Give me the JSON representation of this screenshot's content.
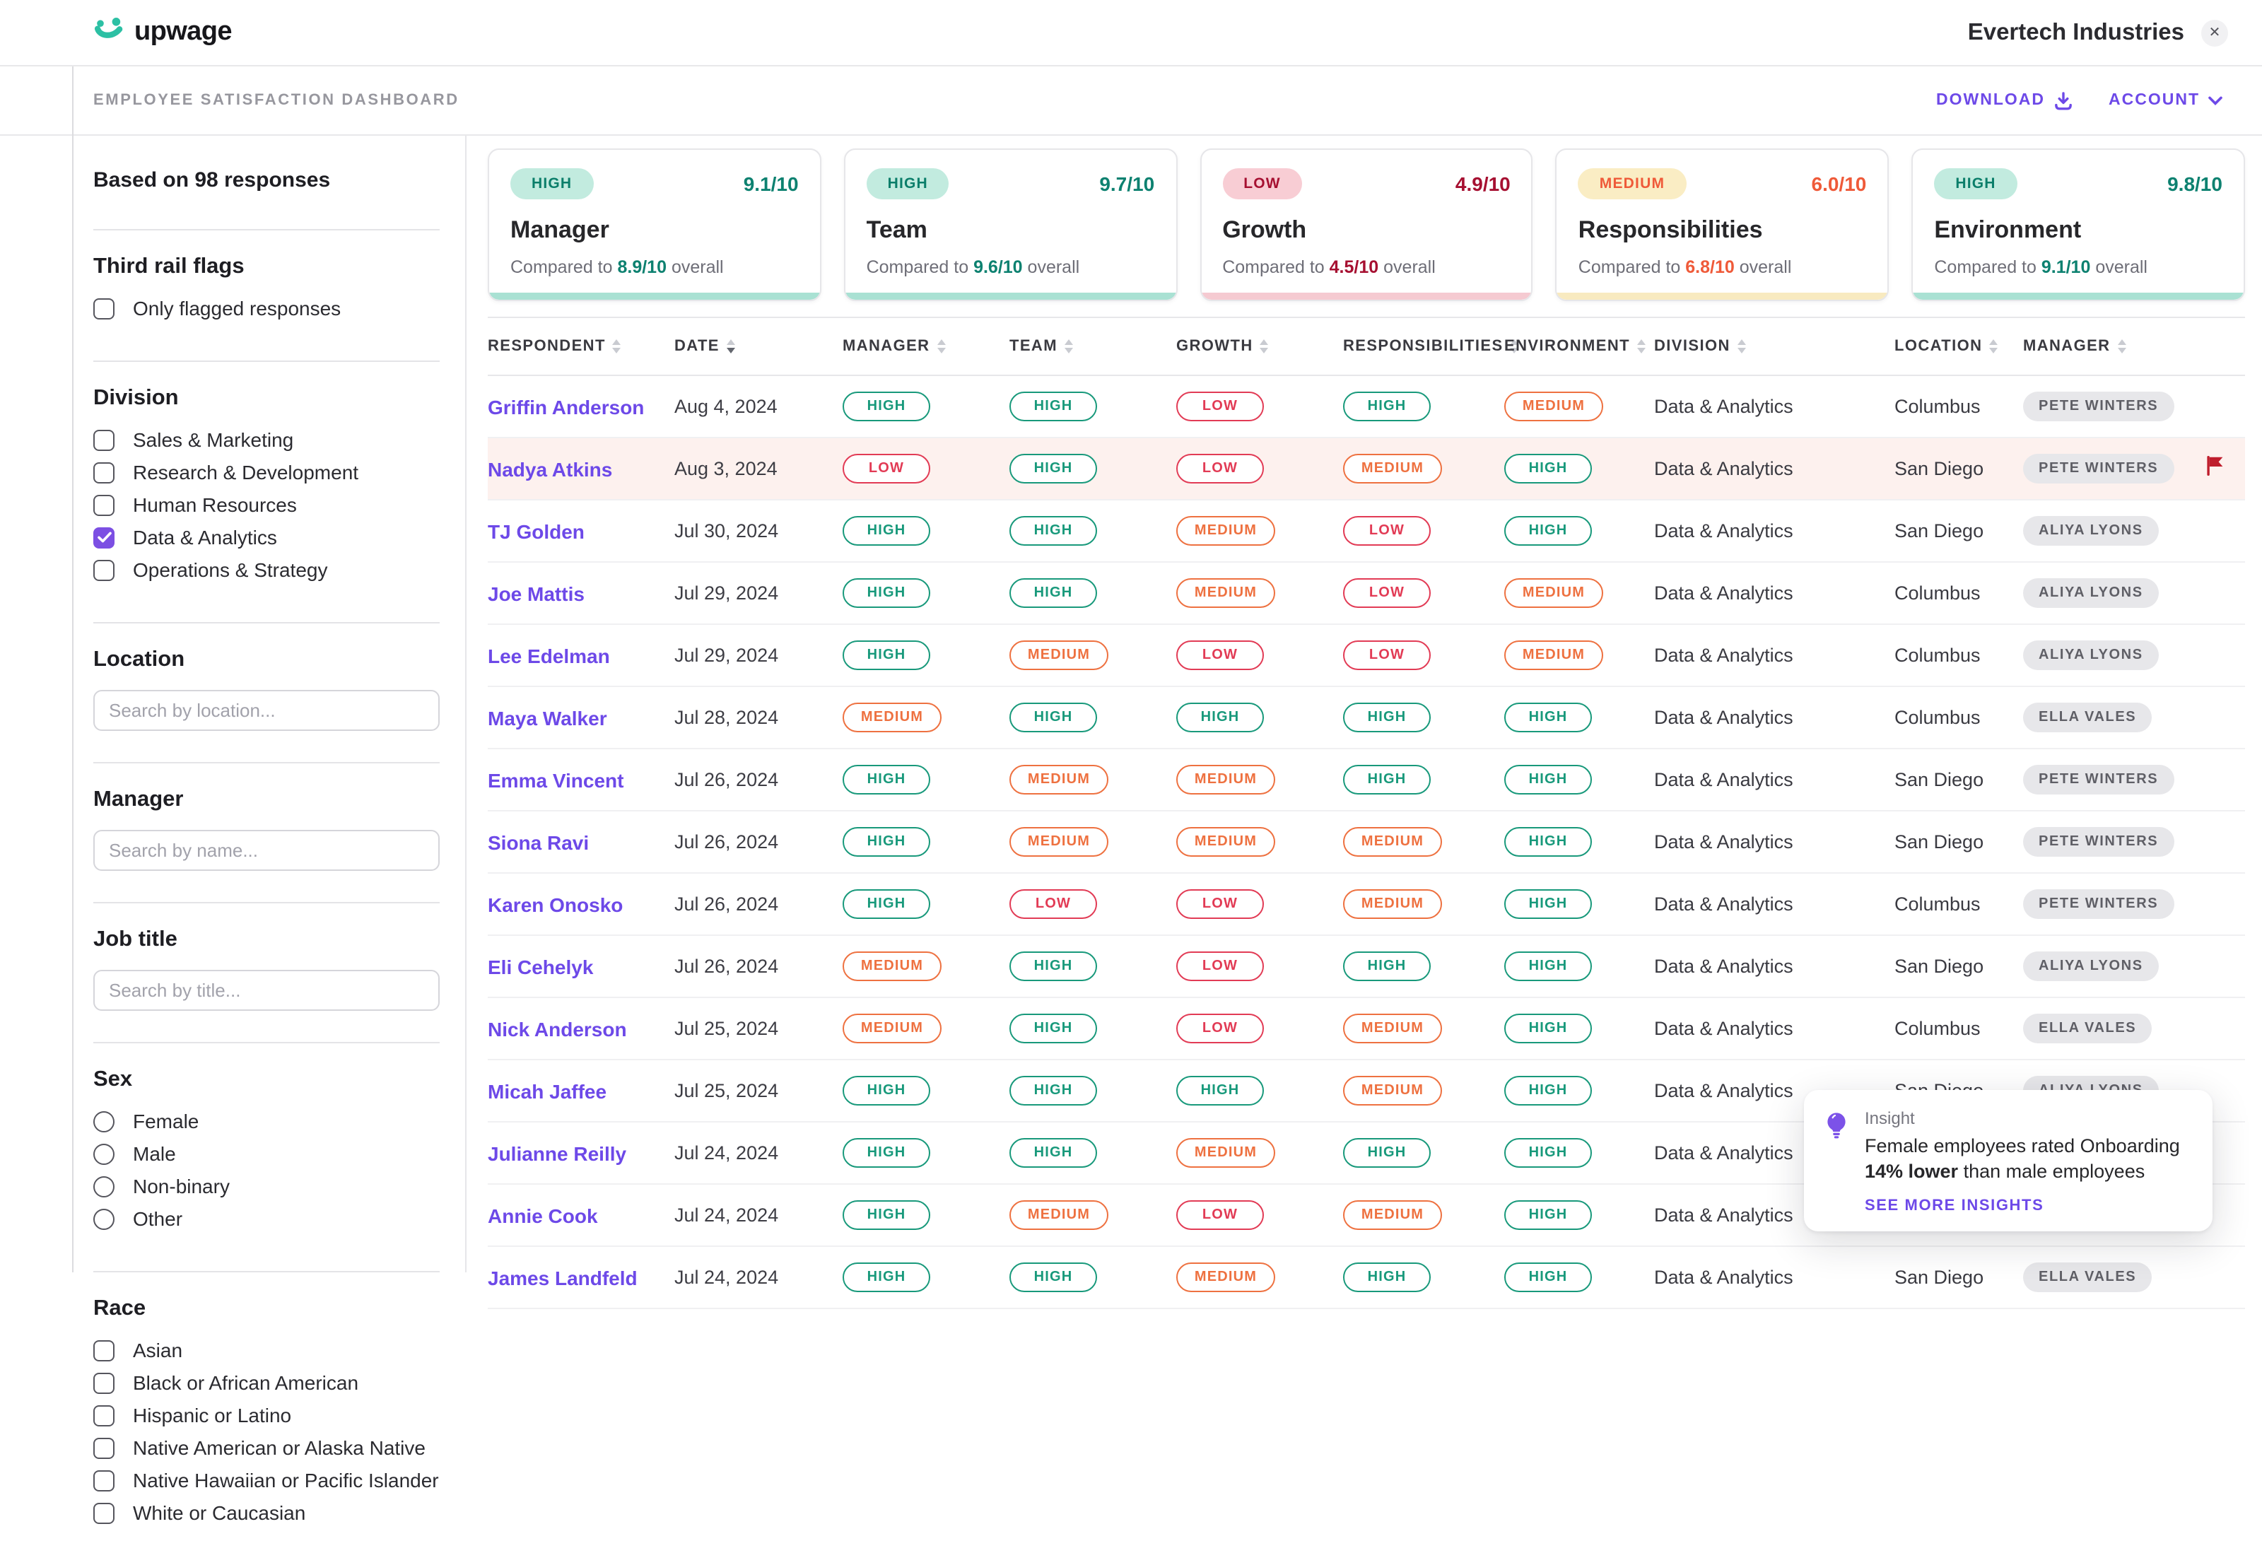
{
  "header": {
    "logo_text": "upwage",
    "company": "Evertech Industries",
    "close_icon": "✕"
  },
  "subheader": {
    "title": "EMPLOYEE SATISFACTION DASHBOARD",
    "download_label": "DOWNLOAD",
    "account_label": "ACCOUNT"
  },
  "sidebar": {
    "responses_label": "Based on 98 responses",
    "third_rail": {
      "heading": "Third rail flags",
      "options": [
        {
          "label": "Only flagged responses",
          "checked": false
        }
      ]
    },
    "division": {
      "heading": "Division",
      "options": [
        {
          "label": "Sales & Marketing",
          "checked": false
        },
        {
          "label": "Research & Development",
          "checked": false
        },
        {
          "label": "Human Resources",
          "checked": false
        },
        {
          "label": "Data & Analytics",
          "checked": true
        },
        {
          "label": "Operations & Strategy",
          "checked": false
        }
      ]
    },
    "location": {
      "heading": "Location",
      "placeholder": "Search by location..."
    },
    "manager": {
      "heading": "Manager",
      "placeholder": "Search by name..."
    },
    "job_title": {
      "heading": "Job title",
      "placeholder": "Search by title..."
    },
    "sex": {
      "heading": "Sex",
      "options": [
        {
          "label": "Female",
          "selected": false
        },
        {
          "label": "Male",
          "selected": false
        },
        {
          "label": "Non-binary",
          "selected": false
        },
        {
          "label": "Other",
          "selected": false
        }
      ]
    },
    "race": {
      "heading": "Race",
      "options": [
        {
          "label": "Asian",
          "checked": false
        },
        {
          "label": "Black or African American",
          "checked": false
        },
        {
          "label": "Hispanic or Latino",
          "checked": false
        },
        {
          "label": "Native American or Alaska Native",
          "checked": false
        },
        {
          "label": "Native Hawaiian or Pacific Islander",
          "checked": false
        },
        {
          "label": "White or Caucasian",
          "checked": false
        }
      ]
    }
  },
  "summary_cards": [
    {
      "level": "HIGH",
      "tone": "high",
      "score": "9.1/10",
      "title": "Manager",
      "compare_prefix": "Compared to ",
      "compare_value": "8.9/10",
      "compare_suffix": " overall"
    },
    {
      "level": "HIGH",
      "tone": "high",
      "score": "9.7/10",
      "title": "Team",
      "compare_prefix": "Compared to ",
      "compare_value": "9.6/10",
      "compare_suffix": " overall"
    },
    {
      "level": "LOW",
      "tone": "low",
      "score": "4.9/10",
      "title": "Growth",
      "compare_prefix": "Compared to ",
      "compare_value": "4.5/10",
      "compare_suffix": " overall"
    },
    {
      "level": "MEDIUM",
      "tone": "med",
      "score": "6.0/10",
      "title": "Responsibilities",
      "compare_prefix": "Compared to ",
      "compare_value": "6.8/10",
      "compare_suffix": " overall"
    },
    {
      "level": "HIGH",
      "tone": "high",
      "score": "9.8/10",
      "title": "Environment",
      "compare_prefix": "Compared to ",
      "compare_value": "9.1/10",
      "compare_suffix": " overall"
    }
  ],
  "table": {
    "columns": [
      {
        "label": "RESPONDENT"
      },
      {
        "label": "DATE",
        "sorted": "desc"
      },
      {
        "label": "MANAGER"
      },
      {
        "label": "TEAM"
      },
      {
        "label": "GROWTH"
      },
      {
        "label": "RESPONSIBILITIES"
      },
      {
        "label": "ENVIRONMENT"
      },
      {
        "label": "DIVISION"
      },
      {
        "label": "LOCATION"
      },
      {
        "label": "MANAGER"
      }
    ],
    "rows": [
      {
        "name": "Griffin Anderson",
        "date": "Aug 4, 2024",
        "manager": "HIGH",
        "team": "HIGH",
        "growth": "LOW",
        "responsibilities": "HIGH",
        "environment": "MEDIUM",
        "division": "Data & Analytics",
        "location": "Columbus",
        "manager_name": "PETE WINTERS",
        "flagged": false
      },
      {
        "name": "Nadya Atkins",
        "date": "Aug 3, 2024",
        "manager": "LOW",
        "team": "HIGH",
        "growth": "LOW",
        "responsibilities": "MEDIUM",
        "environment": "HIGH",
        "division": "Data & Analytics",
        "location": "San Diego",
        "manager_name": "PETE WINTERS",
        "flagged": true
      },
      {
        "name": "TJ Golden",
        "date": "Jul 30, 2024",
        "manager": "HIGH",
        "team": "HIGH",
        "growth": "MEDIUM",
        "responsibilities": "LOW",
        "environment": "HIGH",
        "division": "Data & Analytics",
        "location": "San Diego",
        "manager_name": "ALIYA LYONS",
        "flagged": false
      },
      {
        "name": "Joe Mattis",
        "date": "Jul 29, 2024",
        "manager": "HIGH",
        "team": "HIGH",
        "growth": "MEDIUM",
        "responsibilities": "LOW",
        "environment": "MEDIUM",
        "division": "Data & Analytics",
        "location": "Columbus",
        "manager_name": "ALIYA LYONS",
        "flagged": false
      },
      {
        "name": "Lee Edelman",
        "date": "Jul 29, 2024",
        "manager": "HIGH",
        "team": "MEDIUM",
        "growth": "LOW",
        "responsibilities": "LOW",
        "environment": "MEDIUM",
        "division": "Data & Analytics",
        "location": "Columbus",
        "manager_name": "ALIYA LYONS",
        "flagged": false
      },
      {
        "name": "Maya Walker",
        "date": "Jul 28, 2024",
        "manager": "MEDIUM",
        "team": "HIGH",
        "growth": "HIGH",
        "responsibilities": "HIGH",
        "environment": "HIGH",
        "division": "Data & Analytics",
        "location": "Columbus",
        "manager_name": "ELLA VALES",
        "flagged": false
      },
      {
        "name": "Emma Vincent",
        "date": "Jul 26, 2024",
        "manager": "HIGH",
        "team": "MEDIUM",
        "growth": "MEDIUM",
        "responsibilities": "HIGH",
        "environment": "HIGH",
        "division": "Data & Analytics",
        "location": "San Diego",
        "manager_name": "PETE WINTERS",
        "flagged": false
      },
      {
        "name": "Siona Ravi",
        "date": "Jul 26, 2024",
        "manager": "HIGH",
        "team": "MEDIUM",
        "growth": "MEDIUM",
        "responsibilities": "MEDIUM",
        "environment": "HIGH",
        "division": "Data & Analytics",
        "location": "San Diego",
        "manager_name": "PETE WINTERS",
        "flagged": false
      },
      {
        "name": "Karen Onosko",
        "date": "Jul 26, 2024",
        "manager": "HIGH",
        "team": "LOW",
        "growth": "LOW",
        "responsibilities": "MEDIUM",
        "environment": "HIGH",
        "division": "Data & Analytics",
        "location": "Columbus",
        "manager_name": "PETE WINTERS",
        "flagged": false
      },
      {
        "name": "Eli Cehelyk",
        "date": "Jul 26, 2024",
        "manager": "MEDIUM",
        "team": "HIGH",
        "growth": "LOW",
        "responsibilities": "HIGH",
        "environment": "HIGH",
        "division": "Data & Analytics",
        "location": "San Diego",
        "manager_name": "ALIYA LYONS",
        "flagged": false
      },
      {
        "name": "Nick Anderson",
        "date": "Jul 25, 2024",
        "manager": "MEDIUM",
        "team": "HIGH",
        "growth": "LOW",
        "responsibilities": "MEDIUM",
        "environment": "HIGH",
        "division": "Data & Analytics",
        "location": "Columbus",
        "manager_name": "ELLA VALES",
        "flagged": false
      },
      {
        "name": "Micah Jaffee",
        "date": "Jul 25, 2024",
        "manager": "HIGH",
        "team": "HIGH",
        "growth": "HIGH",
        "responsibilities": "MEDIUM",
        "environment": "HIGH",
        "division": "Data & Analytics",
        "location": "San Diego",
        "manager_name": "ALIYA LYONS",
        "flagged": false
      },
      {
        "name": "Julianne Reilly",
        "date": "Jul 24, 2024",
        "manager": "HIGH",
        "team": "HIGH",
        "growth": "MEDIUM",
        "responsibilities": "HIGH",
        "environment": "HIGH",
        "division": "Data & Analytics",
        "location": "",
        "manager_name": "",
        "flagged": false
      },
      {
        "name": "Annie Cook",
        "date": "Jul 24, 2024",
        "manager": "HIGH",
        "team": "MEDIUM",
        "growth": "LOW",
        "responsibilities": "MEDIUM",
        "environment": "HIGH",
        "division": "Data & Analytics",
        "location": "",
        "manager_name": "",
        "flagged": false
      },
      {
        "name": "James Landfeld",
        "date": "Jul 24, 2024",
        "manager": "HIGH",
        "team": "HIGH",
        "growth": "MEDIUM",
        "responsibilities": "HIGH",
        "environment": "HIGH",
        "division": "Data & Analytics",
        "location": "San Diego",
        "manager_name": "ELLA VALES",
        "flagged": false
      }
    ]
  },
  "insight": {
    "label": "Insight",
    "line1": "Female employees rated Onboarding",
    "line2_bold": "14% lower",
    "line2_rest": " than male employees",
    "link": "SEE MORE INSIGHTS"
  },
  "colors": {
    "accent_purple": "#6d49e8",
    "teal": "#18997b",
    "orange": "#ee7140",
    "red": "#e23b55",
    "dark_red": "#a61031",
    "flag_red": "#bf1d2c",
    "flagged_row_bg": "#fdf1ee"
  }
}
